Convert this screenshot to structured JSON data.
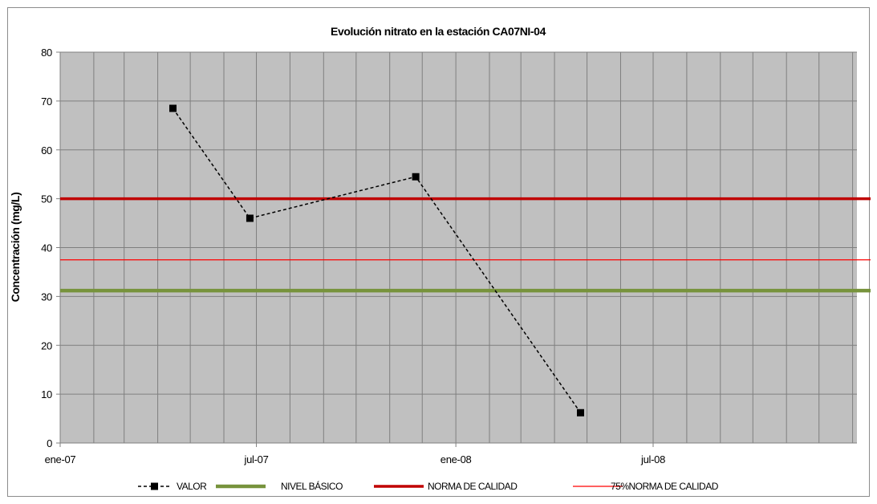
{
  "chart_data": {
    "type": "line",
    "title": "Evolución nitrato en la estación CA07NI-04",
    "ylabel": "Concentración (mg/L)",
    "xlabel": "",
    "ylim": [
      0,
      80
    ],
    "yticks": [
      0,
      10,
      20,
      30,
      40,
      50,
      60,
      70,
      80
    ],
    "xlim": [
      "2007-01",
      "2008-12"
    ],
    "xtick_labels": [
      {
        "date": "2007-01",
        "label": "ene-07"
      },
      {
        "date": "2007-07",
        "label": "jul-07"
      },
      {
        "date": "2008-01",
        "label": "ene-08"
      },
      {
        "date": "2008-07",
        "label": "jul-08"
      }
    ],
    "grid": true,
    "plot_background": "#c0c0c0",
    "legend_position": "bottom",
    "series": [
      {
        "name": "VALOR",
        "style": "dashed-line-square-markers",
        "color": "#000000",
        "points": [
          {
            "x": "2007-04-15",
            "y": 68.5
          },
          {
            "x": "2007-06-25",
            "y": 46.0
          },
          {
            "x": "2007-11-25",
            "y": 54.5
          },
          {
            "x": "2008-04-25",
            "y": 6.2
          }
        ]
      },
      {
        "name": "NIVEL BÁSICO",
        "style": "horizontal-line",
        "color": "#77933c",
        "y": 31.2
      },
      {
        "name": "NORMA DE CALIDAD",
        "style": "horizontal-line",
        "color": "#c00000",
        "y": 50
      },
      {
        "name": "75%NORMA DE CALIDAD",
        "style": "horizontal-line",
        "color": "#ff0000",
        "y": 37.5
      }
    ]
  }
}
